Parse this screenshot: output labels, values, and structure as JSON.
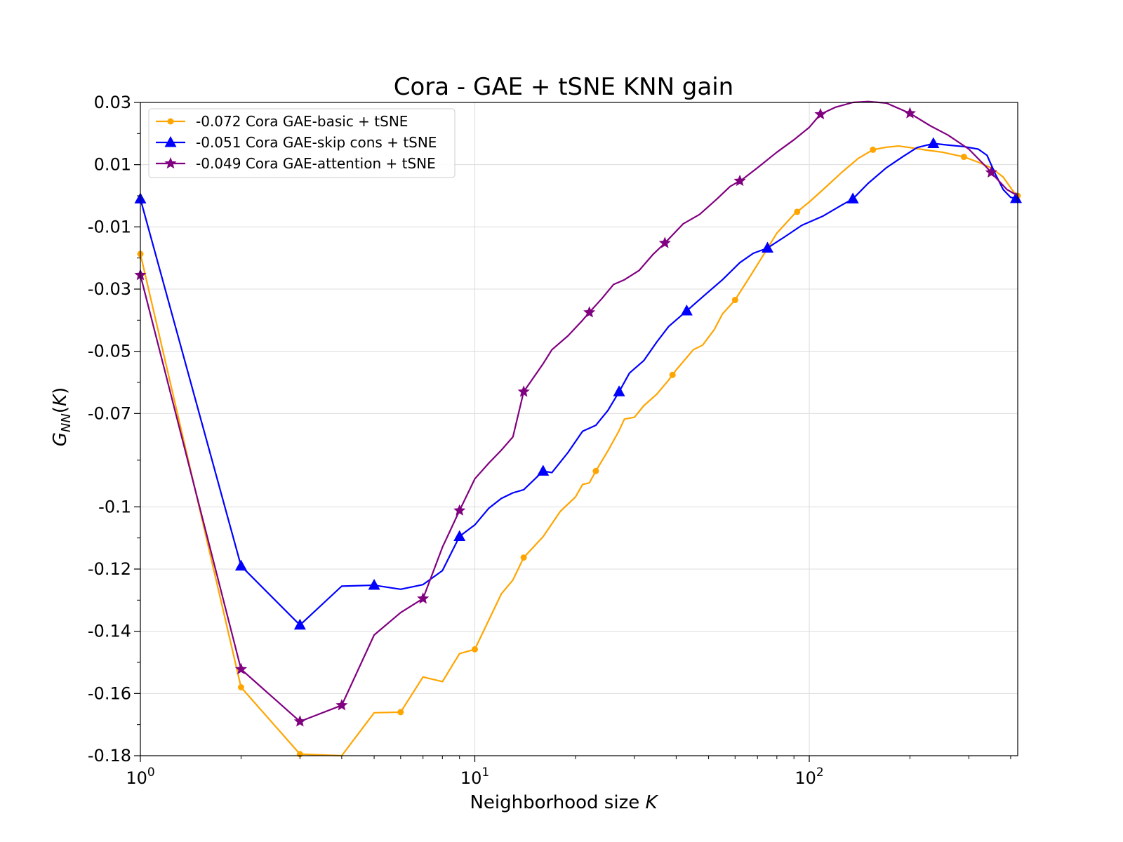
{
  "chart_data": {
    "type": "line",
    "title": "Cora - GAE + tSNE KNN gain",
    "xlabel": "Neighborhood size K",
    "ylabel": "G_NN(K)",
    "x_scale": "log",
    "xlim": [
      1,
      420
    ],
    "ylim": [
      -0.18,
      0.03
    ],
    "yticks": [
      0.03,
      0.01,
      -0.01,
      -0.03,
      -0.05,
      -0.07,
      -0.1,
      -0.12,
      -0.14,
      -0.16,
      -0.18
    ],
    "ytick_labels": [
      "0.03",
      "0.01",
      "-0.01",
      "-0.03",
      "-0.05",
      "-0.07",
      "-0.1",
      "-0.12",
      "-0.14",
      "-0.16",
      "-0.18"
    ],
    "xticks": [
      1,
      10,
      100
    ],
    "xtick_labels": [
      {
        "base": "10",
        "exp": "0"
      },
      {
        "base": "10",
        "exp": "1"
      },
      {
        "base": "10",
        "exp": "2"
      }
    ],
    "grid": true,
    "legend_position": "top-left",
    "series": [
      {
        "name": "-0.072 Cora GAE-basic + tSNE",
        "color": "#FFA500",
        "marker": "circle",
        "points": [
          [
            1,
            -0.0187
          ],
          [
            2,
            -0.158
          ],
          [
            3,
            -0.1795
          ],
          [
            4,
            -0.18
          ],
          [
            5,
            -0.1662
          ],
          [
            6,
            -0.166
          ],
          [
            7,
            -0.1547
          ],
          [
            8,
            -0.1562
          ],
          [
            9,
            -0.1472
          ],
          [
            10,
            -0.1458
          ],
          [
            12,
            -0.128
          ],
          [
            13,
            -0.1235
          ],
          [
            14,
            -0.1163
          ],
          [
            16,
            -0.1096
          ],
          [
            18,
            -0.1015
          ],
          [
            20,
            -0.0968
          ],
          [
            21,
            -0.0928
          ],
          [
            22,
            -0.0923
          ],
          [
            23,
            -0.0885
          ],
          [
            25,
            -0.082
          ],
          [
            27,
            -0.0755
          ],
          [
            28,
            -0.0718
          ],
          [
            30,
            -0.0712
          ],
          [
            32,
            -0.0675
          ],
          [
            35,
            -0.0638
          ],
          [
            38,
            -0.0592
          ],
          [
            40,
            -0.056
          ],
          [
            45,
            -0.0495
          ],
          [
            48,
            -0.048
          ],
          [
            52,
            -0.043
          ],
          [
            55,
            -0.038
          ],
          [
            60,
            -0.0335
          ],
          [
            66,
            -0.0265
          ],
          [
            72,
            -0.02
          ],
          [
            80,
            -0.012
          ],
          [
            90,
            -0.006
          ],
          [
            100,
            -0.002
          ],
          [
            110,
            0.002
          ],
          [
            125,
            0.0075
          ],
          [
            140,
            0.012
          ],
          [
            155,
            0.0148
          ],
          [
            170,
            0.0156
          ],
          [
            185,
            0.016
          ],
          [
            200,
            0.0155
          ],
          [
            220,
            0.0148
          ],
          [
            250,
            0.014
          ],
          [
            290,
            0.0125
          ],
          [
            320,
            0.0108
          ],
          [
            350,
            0.009
          ],
          [
            380,
            0.006
          ],
          [
            410,
            0.001
          ],
          [
            420,
            0.0
          ]
        ],
        "marked_x": [
          1,
          2,
          3,
          6,
          10,
          14,
          23,
          39,
          60,
          92,
          155,
          290,
          420
        ]
      },
      {
        "name": "-0.051 Cora GAE-skip cons + tSNE",
        "color": "#0000FF",
        "marker": "triangle",
        "points": [
          [
            1,
            -0.001
          ],
          [
            2,
            -0.119
          ],
          [
            3,
            -0.138
          ],
          [
            4,
            -0.1255
          ],
          [
            5,
            -0.1252
          ],
          [
            6,
            -0.1265
          ],
          [
            7,
            -0.125
          ],
          [
            8,
            -0.1205
          ],
          [
            9,
            -0.1095
          ],
          [
            10,
            -0.1058
          ],
          [
            11,
            -0.1005
          ],
          [
            12,
            -0.0973
          ],
          [
            13,
            -0.0955
          ],
          [
            14,
            -0.0945
          ],
          [
            16,
            -0.0885
          ],
          [
            17,
            -0.089
          ],
          [
            19,
            -0.0825
          ],
          [
            21,
            -0.0757
          ],
          [
            23,
            -0.0738
          ],
          [
            25,
            -0.069
          ],
          [
            27,
            -0.063
          ],
          [
            29,
            -0.057
          ],
          [
            32,
            -0.053
          ],
          [
            35,
            -0.047
          ],
          [
            38,
            -0.042
          ],
          [
            43,
            -0.037
          ],
          [
            48,
            -0.0325
          ],
          [
            55,
            -0.027
          ],
          [
            62,
            -0.0215
          ],
          [
            68,
            -0.0185
          ],
          [
            75,
            -0.0168
          ],
          [
            85,
            -0.013
          ],
          [
            95,
            -0.0095
          ],
          [
            110,
            -0.0065
          ],
          [
            125,
            -0.003
          ],
          [
            135,
            -0.001
          ],
          [
            150,
            0.004
          ],
          [
            170,
            0.009
          ],
          [
            190,
            0.0125
          ],
          [
            210,
            0.0155
          ],
          [
            235,
            0.0168
          ],
          [
            260,
            0.0163
          ],
          [
            290,
            0.0158
          ],
          [
            320,
            0.015
          ],
          [
            340,
            0.013
          ],
          [
            360,
            0.007
          ],
          [
            380,
            0.002
          ],
          [
            400,
            -0.0005
          ],
          [
            420,
            -0.001
          ]
        ],
        "marked_x": [
          1,
          2,
          3,
          5,
          9,
          16,
          27,
          43,
          75,
          135,
          235,
          415
        ]
      },
      {
        "name": "-0.049 Cora GAE-attention + tSNE",
        "color": "#800080",
        "marker": "star",
        "points": [
          [
            1,
            -0.0255
          ],
          [
            2,
            -0.1522
          ],
          [
            3,
            -0.169
          ],
          [
            4,
            -0.1638
          ],
          [
            5,
            -0.1412
          ],
          [
            6,
            -0.134
          ],
          [
            7,
            -0.1295
          ],
          [
            8,
            -0.113
          ],
          [
            9,
            -0.1012
          ],
          [
            10,
            -0.091
          ],
          [
            11,
            -0.086
          ],
          [
            12,
            -0.0818
          ],
          [
            13,
            -0.0775
          ],
          [
            14,
            -0.063
          ],
          [
            16,
            -0.054
          ],
          [
            17,
            -0.0495
          ],
          [
            19,
            -0.045
          ],
          [
            21,
            -0.04
          ],
          [
            22,
            -0.0375
          ],
          [
            24,
            -0.033
          ],
          [
            26,
            -0.0285
          ],
          [
            28,
            -0.027
          ],
          [
            31,
            -0.024
          ],
          [
            34,
            -0.019
          ],
          [
            37,
            -0.0152
          ],
          [
            42,
            -0.009
          ],
          [
            47,
            -0.006
          ],
          [
            53,
            -0.001
          ],
          [
            58,
            0.003
          ],
          [
            63,
            0.0052
          ],
          [
            70,
            0.009
          ],
          [
            80,
            0.014
          ],
          [
            90,
            0.018
          ],
          [
            100,
            0.022
          ],
          [
            108,
            0.0262
          ],
          [
            120,
            0.0285
          ],
          [
            135,
            0.03
          ],
          [
            150,
            0.0303
          ],
          [
            170,
            0.0298
          ],
          [
            200,
            0.0265
          ],
          [
            230,
            0.0225
          ],
          [
            260,
            0.0195
          ],
          [
            300,
            0.015
          ],
          [
            340,
            0.009
          ],
          [
            360,
            0.006
          ],
          [
            390,
            0.002
          ],
          [
            420,
            0.0
          ]
        ],
        "marked_x": [
          1,
          2,
          3,
          4,
          7,
          9,
          14,
          22,
          37,
          62,
          108,
          200,
          350
        ]
      }
    ]
  }
}
